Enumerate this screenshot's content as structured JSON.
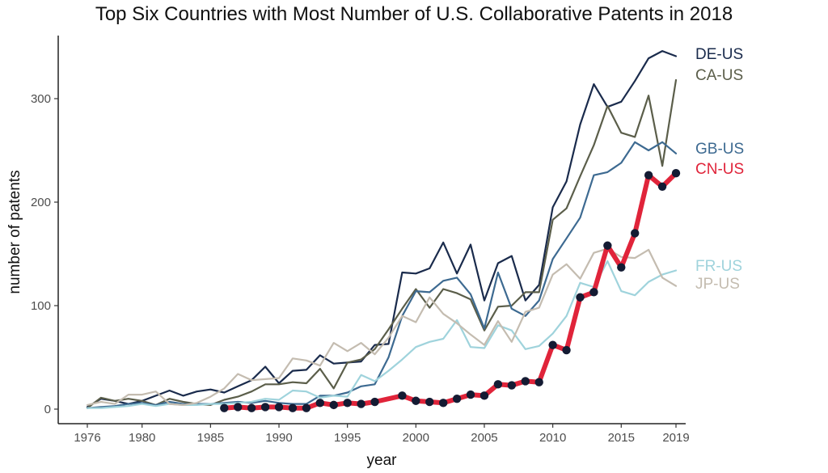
{
  "chart_data": {
    "type": "line",
    "title": "Top Six Countries with Most Number of U.S. Collaborative Patents in 2018",
    "xlabel": "year",
    "ylabel": "number of patents",
    "xlim": [
      1976,
      2019
    ],
    "ylim": [
      0,
      350
    ],
    "x_ticks": [
      1976,
      1980,
      1985,
      1990,
      1995,
      2000,
      2005,
      2010,
      2015,
      2019
    ],
    "y_ticks": [
      0,
      100,
      200,
      300
    ],
    "grid": false,
    "legend": "direct labels at right end of lines",
    "series": [
      {
        "name": "DE-US",
        "color": "#1a2b4c",
        "width": 2.2,
        "points": false,
        "x": [
          1976,
          1977,
          1978,
          1979,
          1980,
          1981,
          1982,
          1983,
          1984,
          1985,
          1986,
          1987,
          1988,
          1989,
          1990,
          1991,
          1992,
          1993,
          1994,
          1995,
          1996,
          1997,
          1998,
          1999,
          2000,
          2001,
          2002,
          2003,
          2004,
          2005,
          2006,
          2007,
          2008,
          2009,
          2010,
          2011,
          2012,
          2013,
          2014,
          2015,
          2016,
          2017,
          2018,
          2019
        ],
        "y": [
          2,
          10,
          8,
          5,
          8,
          13,
          18,
          13,
          17,
          19,
          16,
          22,
          28,
          41,
          25,
          37,
          38,
          52,
          44,
          45,
          46,
          62,
          63,
          132,
          131,
          136,
          161,
          131,
          159,
          105,
          141,
          148,
          105,
          120,
          195,
          220,
          275,
          314,
          292,
          297,
          317,
          339,
          346,
          341
        ]
      },
      {
        "name": "CA-US",
        "color": "#5b5e4a",
        "width": 2.2,
        "points": false,
        "x": [
          1976,
          1977,
          1978,
          1979,
          1980,
          1981,
          1982,
          1983,
          1984,
          1985,
          1986,
          1987,
          1988,
          1989,
          1990,
          1991,
          1992,
          1993,
          1994,
          1995,
          1996,
          1997,
          1998,
          1999,
          2000,
          2001,
          2002,
          2003,
          2004,
          2005,
          2006,
          2007,
          2008,
          2009,
          2010,
          2011,
          2012,
          2013,
          2014,
          2015,
          2016,
          2017,
          2018,
          2019
        ],
        "y": [
          1,
          11,
          8,
          10,
          8,
          4,
          10,
          7,
          5,
          4,
          9,
          12,
          17,
          24,
          24,
          26,
          25,
          39,
          20,
          45,
          48,
          58,
          77,
          97,
          116,
          98,
          116,
          112,
          106,
          76,
          99,
          100,
          113,
          113,
          183,
          194,
          225,
          255,
          293,
          267,
          263,
          303,
          235,
          318
        ]
      },
      {
        "name": "GB-US",
        "color": "#3d6a91",
        "width": 2.2,
        "points": false,
        "x": [
          1976,
          1977,
          1978,
          1979,
          1980,
          1981,
          1982,
          1983,
          1984,
          1985,
          1986,
          1987,
          1988,
          1989,
          1990,
          1991,
          1992,
          1993,
          1994,
          1995,
          1996,
          1997,
          1998,
          1999,
          2000,
          2001,
          2002,
          2003,
          2004,
          2005,
          2006,
          2007,
          2008,
          2009,
          2010,
          2011,
          2012,
          2013,
          2014,
          2015,
          2016,
          2017,
          2018,
          2019
        ],
        "y": [
          1,
          2,
          3,
          5,
          6,
          4,
          7,
          5,
          5,
          5,
          6,
          7,
          6,
          8,
          6,
          5,
          5,
          13,
          13,
          16,
          22,
          24,
          50,
          90,
          114,
          113,
          124,
          127,
          111,
          78,
          132,
          97,
          90,
          105,
          145,
          165,
          185,
          226,
          229,
          238,
          258,
          250,
          258,
          247
        ]
      },
      {
        "name": "CN-US",
        "color": "#e0243a",
        "width": 6,
        "points": true,
        "point_color": "#141b33",
        "x": [
          1986,
          1987,
          1988,
          1989,
          1990,
          1991,
          1992,
          1993,
          1994,
          1995,
          1996,
          1997,
          1999,
          2000,
          2001,
          2002,
          2003,
          2004,
          2005,
          2006,
          2007,
          2008,
          2009,
          2010,
          2011,
          2012,
          2013,
          2014,
          2015,
          2016,
          2017,
          2018,
          2019
        ],
        "y": [
          1,
          2,
          1,
          2,
          2,
          1,
          1,
          6,
          4,
          6,
          5,
          7,
          13,
          8,
          7,
          6,
          10,
          14,
          13,
          24,
          23,
          27,
          26,
          62,
          57,
          108,
          113,
          158,
          137,
          170,
          226,
          215,
          228
        ]
      },
      {
        "name": "FR-US",
        "color": "#9fd3dc",
        "width": 2.2,
        "points": false,
        "x": [
          1976,
          1977,
          1978,
          1979,
          1980,
          1981,
          1982,
          1983,
          1984,
          1985,
          1986,
          1987,
          1988,
          1989,
          1990,
          1991,
          1992,
          1993,
          1994,
          1995,
          1996,
          1997,
          1998,
          1999,
          2000,
          2001,
          2002,
          2003,
          2004,
          2005,
          2006,
          2007,
          2008,
          2009,
          2010,
          2011,
          2012,
          2013,
          2014,
          2015,
          2016,
          2017,
          2018,
          2019
        ],
        "y": [
          1,
          1,
          2,
          3,
          5,
          3,
          5,
          4,
          4,
          5,
          5,
          6,
          7,
          10,
          9,
          18,
          17,
          11,
          13,
          12,
          33,
          27,
          37,
          48,
          60,
          65,
          68,
          86,
          60,
          59,
          81,
          76,
          58,
          61,
          73,
          90,
          122,
          118,
          143,
          114,
          110,
          123,
          130,
          134
        ]
      },
      {
        "name": "JP-US",
        "color": "#c4bcb0",
        "width": 2.2,
        "points": false,
        "x": [
          1976,
          1977,
          1978,
          1979,
          1980,
          1981,
          1982,
          1983,
          1984,
          1985,
          1986,
          1987,
          1988,
          1989,
          1990,
          1991,
          1992,
          1993,
          1994,
          1995,
          1996,
          1997,
          1998,
          1999,
          2000,
          2001,
          2002,
          2003,
          2004,
          2005,
          2006,
          2007,
          2008,
          2009,
          2010,
          2011,
          2012,
          2013,
          2014,
          2015,
          2016,
          2017,
          2018,
          2019
        ],
        "y": [
          4,
          7,
          5,
          14,
          14,
          17,
          5,
          4,
          6,
          12,
          20,
          34,
          28,
          29,
          30,
          49,
          47,
          42,
          64,
          56,
          64,
          53,
          69,
          90,
          84,
          108,
          92,
          83,
          72,
          62,
          85,
          65,
          94,
          98,
          130,
          140,
          126,
          151,
          155,
          147,
          146,
          154,
          127,
          119
        ]
      }
    ]
  }
}
